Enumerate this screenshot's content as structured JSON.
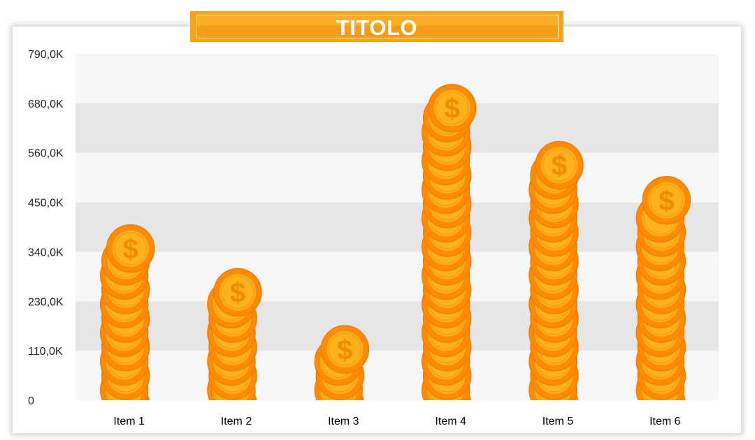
{
  "chart_data": {
    "type": "bar",
    "title": "TITOLO",
    "categories": [
      "Item 1",
      "Item 2",
      "Item 3",
      "Item 4",
      "Item 5",
      "Item 6"
    ],
    "values": [
      400000,
      300000,
      170000,
      720000,
      590000,
      510000
    ],
    "yticks": [
      "0",
      "110,0K",
      "230,0K",
      "340,0K",
      "450,0K",
      "560,0K",
      "680,0K",
      "790,0K"
    ],
    "ylim": [
      0,
      790000
    ],
    "bar_style": "stacked-coins",
    "coin_color": "#ff8c00",
    "coin_face_color": "#ffb21d",
    "band_colors": [
      "#f7f7f7",
      "#e6e6e6"
    ]
  }
}
